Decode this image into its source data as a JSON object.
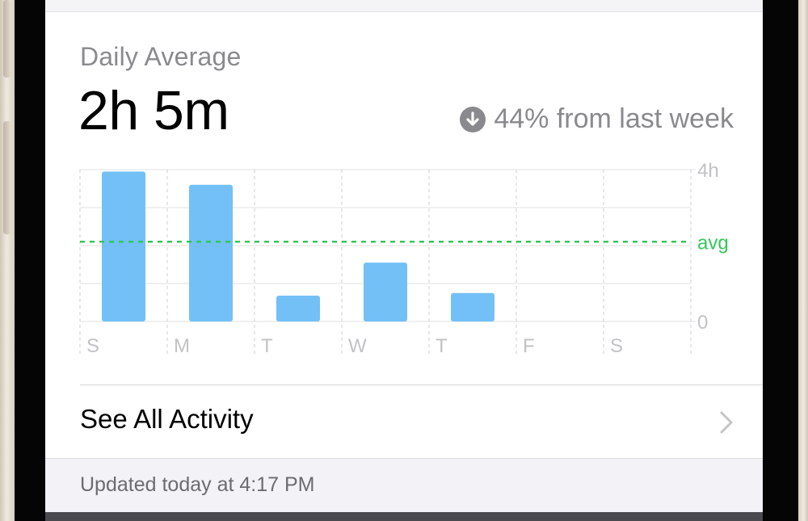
{
  "header": {
    "label": "Daily Average",
    "value": "2h 5m",
    "change_text": "44% from last week",
    "change_icon": "arrow-down-circle-icon"
  },
  "chart_data": {
    "type": "bar",
    "categories": [
      "S",
      "M",
      "T",
      "W",
      "T",
      "F",
      "S"
    ],
    "values": [
      3.95,
      3.6,
      0.68,
      1.55,
      0.75,
      0,
      0
    ],
    "ylim": [
      0,
      4
    ],
    "y_tick_labels": [
      "4h",
      "0"
    ],
    "average": 2.1,
    "average_label": "avg",
    "colors": {
      "bar": "#72c0f5",
      "average": "#34c759",
      "grid": "#e0e0e4"
    }
  },
  "actions": {
    "see_all": "See All Activity"
  },
  "footer": {
    "updated": "Updated today at 4:17 PM"
  }
}
